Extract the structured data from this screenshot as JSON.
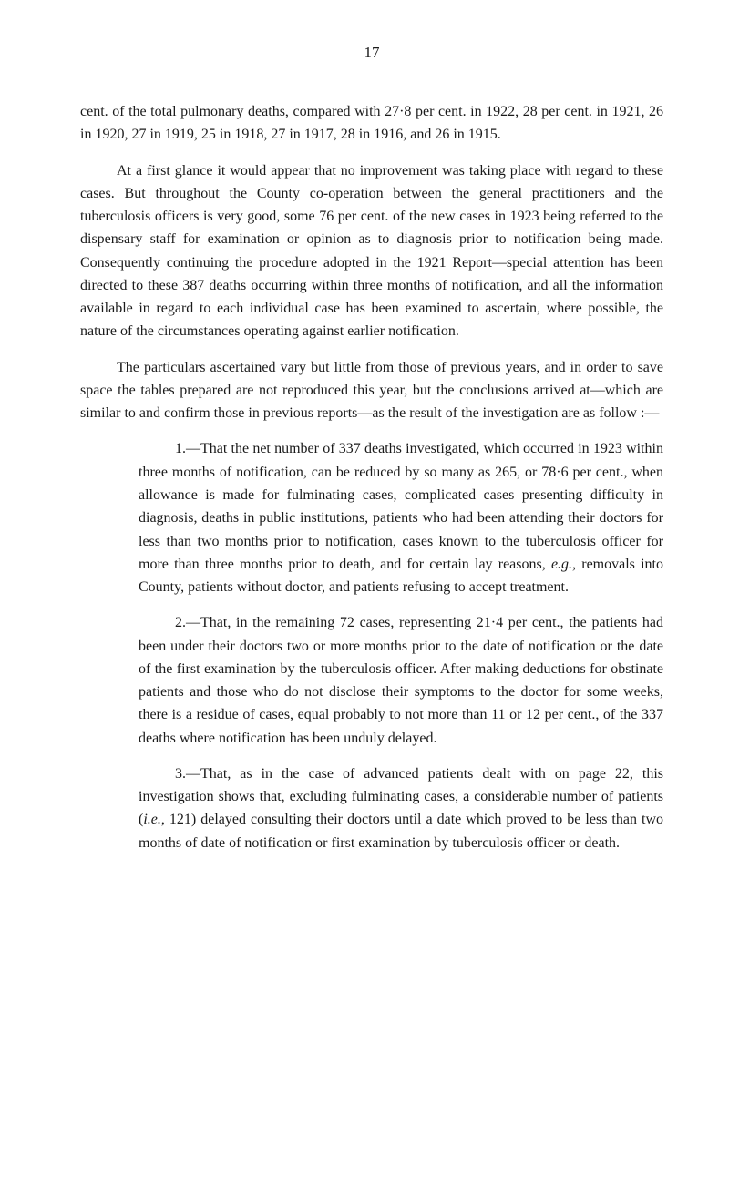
{
  "pageNumber": "17",
  "paragraphs": {
    "p1": "cent. of the total pulmonary deaths, compared with 27·8 per cent. in 1922, 28 per cent. in 1921, 26 in 1920, 27 in 1919, 25 in 1918, 27 in 1917, 28 in 1916, and 26 in 1915.",
    "p2": "At a first glance it would appear that no improvement was taking place with regard to these cases. But throughout the County co-operation between the general practitioners and the tuberculosis officers is very good, some 76 per cent. of the new cases in 1923 being referred to the dispensary staff for examination or opinion as to diagnosis prior to notification being made. Consequently continuing the procedure adopted in the 1921 Report—special attention has been directed to these 387 deaths occurring within three months of notification, and all the information available in regard to each individual case has been examined to ascertain, where possible, the nature of the circumstances operating against earlier notification.",
    "p3": "The particulars ascertained vary but little from those of previous years, and in order to save space the tables prepared are not reproduced this year, but the conclusions arrived at—which are similar to and confirm those in previous reports—as the result of the investigation are as follow :—",
    "sub1_a": "1.—That the net number of 337 deaths investigated, which occurred in 1923 within three months of notification, can be reduced by so many as 265, or 78·6 per cent., when allowance is made for fulminating cases, complicated cases presenting difficulty in diagnosis, deaths in public institutions, patients who had been attending their doctors for less than two months prior to notifica­tion, cases known to the tuberculosis officer for more than three months prior to death, and for certain lay reasons, ",
    "sub1_eg": "e.g.",
    "sub1_b": ", removals into County, patients without doctor, and patients refusing to accept treatment.",
    "sub2": "2.—That, in the remaining 72 cases, representing 21·4 per cent., the patients had been under their doctors two or more months prior to the date of notification or the date of the first examination by the tuberculosis officer. After making deductions for obstinate patients and those who do not disclose their symptoms to the doctor for some weeks, there is a residue of cases, equal probably to not more than 11 or 12 per cent., of the 337 deaths where notification has been unduly delayed.",
    "sub3_a": "3.—That, as in the case of advanced patients dealt with on page 22, this investigation shows that, excluding fulminating cases, a considerable number of patients (",
    "sub3_ie": "i.e.",
    "sub3_b": ", 121) delayed consulting their doctors until a date which proved to be less than two months of date of notification or first examination by tuber­culosis officer or death."
  }
}
